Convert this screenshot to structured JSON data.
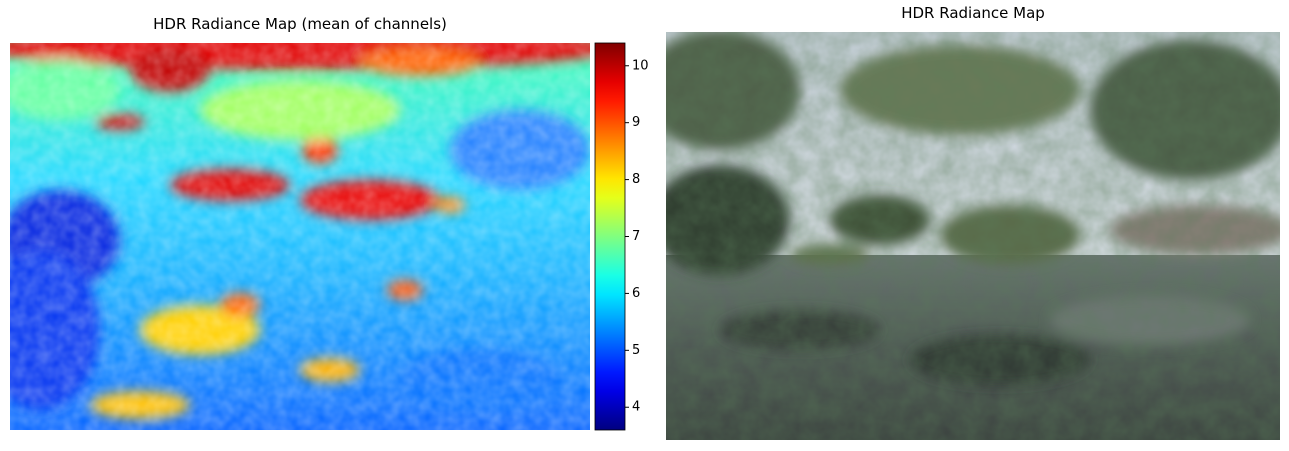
{
  "chart_data": [
    {
      "type": "heatmap",
      "title": "HDR Radiance Map (mean of channels)",
      "colormap": "jet",
      "clim": [
        3.6,
        10.4
      ],
      "cticks": [
        4,
        5,
        6,
        7,
        8,
        9,
        10
      ]
    },
    {
      "type": "image",
      "title": "HDR Radiance Map"
    }
  ]
}
